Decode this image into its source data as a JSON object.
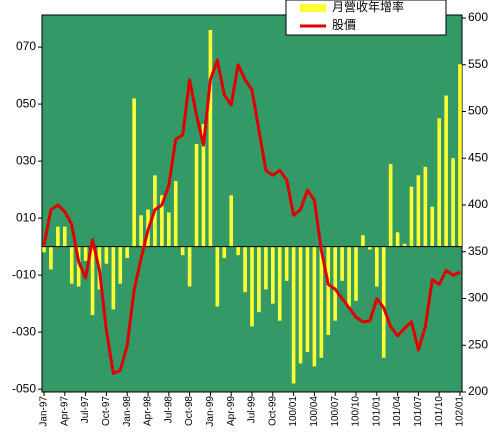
{
  "chart_data": {
    "type": "bar-line",
    "categories": [
      "Jan-97",
      null,
      null,
      "Apr-97",
      null,
      null,
      "Jul-97",
      null,
      null,
      "Oct-97",
      null,
      null,
      "Jan-98",
      null,
      null,
      "Apr-98",
      null,
      null,
      "Jul-98",
      null,
      null,
      "Oct-98",
      null,
      null,
      "Jan-99",
      null,
      null,
      "Apr-99",
      null,
      null,
      "Jul-99",
      null,
      null,
      "Oct-99",
      null,
      null,
      "100/01",
      null,
      null,
      "100/04",
      null,
      null,
      "100/07",
      null,
      null,
      "100/10",
      null,
      null,
      "101/01",
      null,
      null,
      "101/04",
      null,
      null,
      "101/07",
      null,
      null,
      "101/10",
      null,
      null,
      "102/01"
    ],
    "series": [
      {
        "name": "月營收年增率",
        "color": "#ffff33",
        "kind": "bar",
        "axis": "y",
        "values": [
          -2,
          -8,
          7,
          7,
          -13,
          -14,
          -5,
          -24,
          -15,
          -6,
          -22,
          -13,
          -4,
          52,
          11,
          13,
          25,
          18,
          12,
          23,
          -3,
          -14,
          36,
          43,
          76,
          -21,
          -4,
          18,
          -3,
          -16,
          -28,
          -23,
          -15,
          -20,
          -26,
          -12,
          -48,
          -41,
          -37,
          -42,
          -39,
          -31,
          -26,
          -12,
          -21,
          -19,
          4,
          -1,
          -14,
          -39,
          29,
          5,
          1,
          21,
          25,
          28,
          14,
          45,
          53,
          31,
          64
        ]
      },
      {
        "name": "股價",
        "color": "#e00000",
        "kind": "line",
        "axis": "y2",
        "values": [
          357,
          395,
          400,
          393,
          379,
          339,
          322,
          363,
          330,
          266,
          220,
          223,
          250,
          309,
          343,
          373,
          395,
          400,
          421,
          470,
          475,
          534,
          496,
          464,
          534,
          555,
          518,
          507,
          550,
          534,
          523,
          480,
          437,
          432,
          437,
          427,
          389,
          395,
          416,
          405,
          352,
          315,
          310,
          300,
          290,
          280,
          275,
          276,
          300,
          290,
          270,
          260,
          268,
          275,
          245,
          270,
          320,
          315,
          330,
          325,
          328
        ]
      }
    ],
    "ylim": [
      -51,
      80.2
    ],
    "yticks": [
      {
        "value": 70,
        "label": "070"
      },
      {
        "value": 50,
        "label": "050"
      },
      {
        "value": 30,
        "label": "030"
      },
      {
        "value": 10,
        "label": "010"
      },
      {
        "value": -10,
        "label": "-010"
      },
      {
        "value": -30,
        "label": "-030"
      },
      {
        "value": -50,
        "label": "-050"
      }
    ],
    "y2lim": [
      200,
      600
    ],
    "y2ticks": [
      200,
      250,
      300,
      350,
      400,
      450,
      500,
      550,
      600
    ],
    "background": "#339966"
  }
}
